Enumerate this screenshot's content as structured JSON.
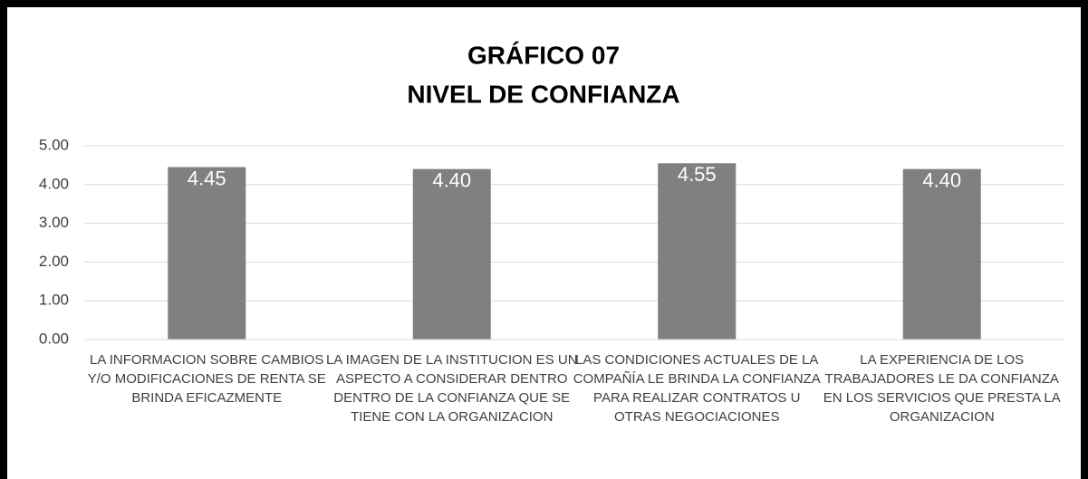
{
  "chart_data": {
    "type": "bar",
    "title": "GRÁFICO 07",
    "subtitle": "NIVEL DE CONFIANZA",
    "categories": [
      "LA INFORMACION SOBRE CAMBIOS Y/O MODIFICACIONES DE RENTA SE BRINDA EFICAZMENTE",
      "LA IMAGEN DE LA INSTITUCION ES UN ASPECTO A CONSIDERAR DENTRO DENTRO DE LA CONFIANZA QUE SE TIENE CON LA ORGANIZACION",
      "LAS CONDICIONES ACTUALES DE LA COMPAÑÍA  LE BRINDA LA CONFIANZA  PARA REALIZAR CONTRATOS U OTRAS NEGOCIACIONES",
      "LA EXPERIENCIA DE LOS TRABAJADORES LE DA CONFIANZA EN LOS SERVICIOS QUE PRESTA LA ORGANIZACION"
    ],
    "values": [
      4.45,
      4.4,
      4.55,
      4.4
    ],
    "value_labels": [
      "4.45",
      "4.40",
      "4.55",
      "4.40"
    ],
    "color": "#808080",
    "ylim": [
      0,
      5
    ],
    "yticks": [
      {
        "value": 0,
        "label": "0.00"
      },
      {
        "value": 1,
        "label": "1.00"
      },
      {
        "value": 2,
        "label": "2.00"
      },
      {
        "value": 3,
        "label": "3.00"
      },
      {
        "value": 4,
        "label": "4.00"
      },
      {
        "value": 5,
        "label": "5.00"
      }
    ],
    "grid": true
  }
}
